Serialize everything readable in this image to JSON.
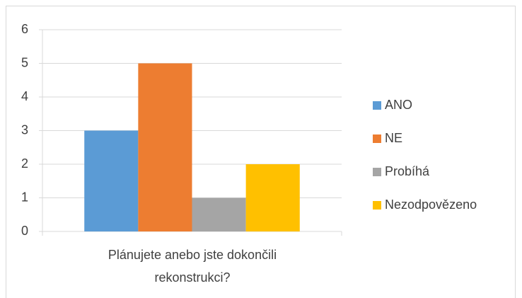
{
  "chart_data": {
    "type": "bar",
    "categories": [
      "Plánujete anebo jste dokončili rekonstrukci?"
    ],
    "series": [
      {
        "name": "ANO",
        "color": "#5b9bd5",
        "values": [
          3
        ]
      },
      {
        "name": "NE",
        "color": "#ed7d31",
        "values": [
          5
        ]
      },
      {
        "name": "Probíhá",
        "color": "#a5a5a5",
        "values": [
          1
        ]
      },
      {
        "name": "Nezodpovězeno",
        "color": "#ffc000",
        "values": [
          2
        ]
      }
    ],
    "ylim": [
      0,
      6
    ],
    "yticks": [
      0,
      1,
      2,
      3,
      4,
      5,
      6
    ],
    "grid": true,
    "legend": "right"
  }
}
